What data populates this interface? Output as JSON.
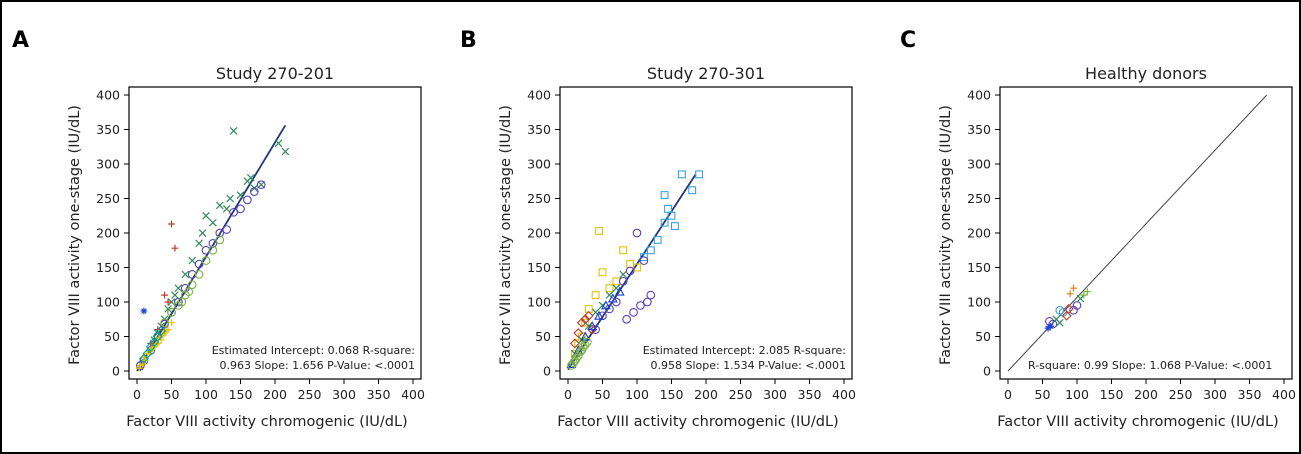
{
  "panels": [
    "A",
    "B",
    "C"
  ],
  "chart_data": [
    {
      "type": "scatter",
      "title": "Study 270-201",
      "xlabel": "Factor VIII activity chromogenic (IU/dL)",
      "ylabel": "Factor VIII activity one-stage (IU/dL)",
      "xlim": [
        0,
        400
      ],
      "ylim": [
        0,
        400
      ],
      "xticks": [
        "0",
        "50",
        "100",
        "150",
        "200",
        "250",
        "300",
        "350",
        "400"
      ],
      "yticks": [
        "0",
        "50",
        "100",
        "150",
        "200",
        "250",
        "300",
        "350",
        "400"
      ],
      "annotation": [
        "Estimated Intercept: 0.068 R-square:",
        "0.963 Slope: 1.656 P-Value: <.0001"
      ],
      "fit_line": {
        "x": [
          0,
          215
        ],
        "y": [
          0,
          356
        ],
        "color": "#1f3a7a"
      },
      "series": [
        {
          "marker": "x",
          "color": "#2e8b57",
          "points": [
            [
              140,
              348
            ],
            [
              215,
              318
            ],
            [
              205,
              330
            ],
            [
              160,
              275
            ],
            [
              150,
              255
            ],
            [
              170,
              265
            ],
            [
              135,
              250
            ],
            [
              120,
              240
            ],
            [
              100,
              225
            ],
            [
              165,
              280
            ],
            [
              180,
              270
            ],
            [
              110,
              215
            ],
            [
              95,
              200
            ],
            [
              130,
              235
            ],
            [
              90,
              185
            ],
            [
              80,
              160
            ],
            [
              70,
              140
            ],
            [
              60,
              120
            ],
            [
              50,
              100
            ],
            [
              45,
              90
            ],
            [
              55,
              110
            ],
            [
              40,
              75
            ],
            [
              35,
              65
            ],
            [
              30,
              55
            ],
            [
              25,
              45
            ]
          ]
        },
        {
          "marker": "o",
          "color": "#5b3fbf",
          "points": [
            [
              180,
              270
            ],
            [
              160,
              248
            ],
            [
              140,
              230
            ],
            [
              120,
              200
            ],
            [
              100,
              175
            ],
            [
              90,
              155
            ],
            [
              80,
              140
            ],
            [
              110,
              185
            ],
            [
              130,
              205
            ],
            [
              70,
              120
            ],
            [
              60,
              100
            ],
            [
              50,
              85
            ],
            [
              40,
              68
            ],
            [
              30,
              50
            ],
            [
              20,
              30
            ],
            [
              10,
              15
            ],
            [
              5,
              8
            ],
            [
              150,
              235
            ],
            [
              170,
              260
            ]
          ]
        },
        {
          "marker": "+",
          "color": "#c0392b",
          "points": [
            [
              50,
              213
            ],
            [
              55,
              178
            ],
            [
              40,
              110
            ],
            [
              45,
              100
            ],
            [
              30,
              60
            ],
            [
              20,
              40
            ]
          ]
        },
        {
          "marker": "*",
          "color": "#1a3fcf",
          "points": [
            [
              10,
              87
            ],
            [
              8,
              12
            ],
            [
              5,
              5
            ]
          ]
        },
        {
          "marker": "+",
          "color": "#e6c200",
          "points": [
            [
              15,
              25
            ],
            [
              20,
              30
            ],
            [
              25,
              35
            ],
            [
              30,
              40
            ],
            [
              35,
              45
            ],
            [
              40,
              55
            ],
            [
              10,
              20
            ],
            [
              12,
              15
            ],
            [
              18,
              28
            ],
            [
              22,
              32
            ],
            [
              28,
              38
            ],
            [
              32,
              48
            ],
            [
              45,
              60
            ],
            [
              50,
              70
            ],
            [
              8,
              10
            ],
            [
              5,
              8
            ],
            [
              3,
              4
            ],
            [
              38,
              52
            ],
            [
              42,
              58
            ]
          ]
        },
        {
          "marker": "o",
          "color": "#7cb342",
          "points": [
            [
              40,
              70
            ],
            [
              50,
              85
            ],
            [
              60,
              95
            ],
            [
              70,
              110
            ],
            [
              80,
              125
            ],
            [
              90,
              140
            ],
            [
              100,
              160
            ],
            [
              110,
              175
            ],
            [
              120,
              190
            ],
            [
              65,
              100
            ],
            [
              75,
              115
            ]
          ]
        },
        {
          "marker": "d",
          "color": "#00a0a0",
          "points": [
            [
              20,
              35
            ],
            [
              25,
              42
            ],
            [
              30,
              50
            ],
            [
              35,
              58
            ],
            [
              15,
              25
            ],
            [
              10,
              18
            ]
          ]
        }
      ]
    },
    {
      "type": "scatter",
      "title": "Study 270-301",
      "xlabel": "Factor VIII activity chromogenic (IU/dL)",
      "ylabel": "Factor VIII activity one-stage (IU/dL)",
      "xlim": [
        0,
        400
      ],
      "ylim": [
        0,
        400
      ],
      "xticks": [
        "0",
        "50",
        "100",
        "150",
        "200",
        "250",
        "300",
        "350",
        "400"
      ],
      "yticks": [
        "0",
        "50",
        "100",
        "150",
        "200",
        "250",
        "300",
        "350",
        "400"
      ],
      "annotation": [
        "Estimated Intercept: 2.085 R-square:",
        "0.958 Slope: 1.534 P-Value: <.0001"
      ],
      "fit_line": {
        "x": [
          0,
          185
        ],
        "y": [
          2,
          285
        ],
        "color": "#1f3a7a"
      },
      "series": [
        {
          "marker": "s",
          "color": "#3aa0e0",
          "points": [
            [
              165,
              285
            ],
            [
              190,
              285
            ],
            [
              140,
              255
            ],
            [
              180,
              262
            ],
            [
              145,
              235
            ],
            [
              150,
              225
            ],
            [
              140,
              215
            ],
            [
              155,
              210
            ],
            [
              130,
              190
            ],
            [
              120,
              175
            ],
            [
              110,
              165
            ]
          ]
        },
        {
          "marker": "s",
          "color": "#e6c200",
          "points": [
            [
              45,
              203
            ],
            [
              80,
              175
            ],
            [
              50,
              143
            ],
            [
              90,
              155
            ],
            [
              100,
              150
            ],
            [
              70,
              130
            ],
            [
              60,
              120
            ],
            [
              40,
              110
            ],
            [
              30,
              90
            ],
            [
              25,
              70
            ],
            [
              20,
              50
            ],
            [
              15,
              40
            ],
            [
              10,
              25
            ]
          ]
        },
        {
          "marker": "o",
          "color": "#5b3fbf",
          "points": [
            [
              100,
              200
            ],
            [
              110,
              160
            ],
            [
              90,
              145
            ],
            [
              80,
              130
            ],
            [
              120,
              110
            ],
            [
              105,
              95
            ],
            [
              115,
              100
            ],
            [
              85,
              75
            ],
            [
              95,
              85
            ],
            [
              70,
              100
            ],
            [
              60,
              90
            ],
            [
              50,
              80
            ],
            [
              40,
              60
            ]
          ]
        },
        {
          "marker": "d",
          "color": "#c0392b",
          "points": [
            [
              20,
              70
            ],
            [
              25,
              75
            ],
            [
              15,
              55
            ],
            [
              10,
              40
            ],
            [
              30,
              80
            ],
            [
              35,
              60
            ]
          ]
        },
        {
          "marker": "x",
          "color": "#2e8b57",
          "points": [
            [
              60,
              110
            ],
            [
              70,
              120
            ],
            [
              80,
              140
            ],
            [
              50,
              95
            ],
            [
              40,
              85
            ],
            [
              30,
              65
            ],
            [
              20,
              45
            ],
            [
              10,
              25
            ]
          ]
        },
        {
          "marker": "^",
          "color": "#1a3fcf",
          "points": [
            [
              65,
              105
            ],
            [
              75,
              115
            ],
            [
              55,
              95
            ],
            [
              45,
              80
            ],
            [
              35,
              65
            ],
            [
              25,
              50
            ],
            [
              15,
              30
            ],
            [
              5,
              10
            ]
          ]
        },
        {
          "marker": "o",
          "color": "#7cb342",
          "points": [
            [
              10,
              15
            ],
            [
              15,
              22
            ],
            [
              20,
              30
            ],
            [
              25,
              38
            ],
            [
              5,
              8
            ],
            [
              8,
              12
            ],
            [
              12,
              18
            ],
            [
              18,
              28
            ],
            [
              22,
              35
            ],
            [
              28,
              42
            ]
          ]
        }
      ]
    },
    {
      "type": "scatter",
      "title": "Healthy donors",
      "xlabel": "Factor VIII activity chromogenic (IU/dL)",
      "ylabel": "Factor VIII activity one-stage (IU/dL)",
      "xlim": [
        0,
        400
      ],
      "ylim": [
        0,
        400
      ],
      "xticks": [
        "0",
        "50",
        "100",
        "150",
        "200",
        "250",
        "300",
        "350",
        "400"
      ],
      "yticks": [
        "0",
        "50",
        "100",
        "150",
        "200",
        "250",
        "300",
        "350",
        "400"
      ],
      "annotation": [
        "R-square: 0.99 Slope: 1.068 P-Value: <.0001"
      ],
      "fit_line": {
        "x": [
          0,
          375
        ],
        "y": [
          0,
          400
        ],
        "color": "#444444"
      },
      "series": [
        {
          "marker": "o",
          "color": "#5b3fbf",
          "points": [
            [
              60,
              72
            ],
            [
              65,
              68
            ],
            [
              95,
              88
            ],
            [
              100,
              95
            ]
          ]
        },
        {
          "marker": "x",
          "color": "#2e8b57",
          "points": [
            [
              70,
              75
            ],
            [
              75,
              70
            ],
            [
              105,
              105
            ]
          ]
        },
        {
          "marker": "+",
          "color": "#e67e22",
          "points": [
            [
              95,
              120
            ],
            [
              90,
              112
            ]
          ]
        },
        {
          "marker": "o",
          "color": "#3aa0e0",
          "points": [
            [
              75,
              88
            ],
            [
              80,
              85
            ]
          ]
        },
        {
          "marker": "*",
          "color": "#1a3fcf",
          "points": [
            [
              58,
              62
            ],
            [
              62,
              65
            ]
          ]
        },
        {
          "marker": "d",
          "color": "#c0392b",
          "points": [
            [
              85,
              80
            ],
            [
              88,
              90
            ]
          ]
        },
        {
          "marker": "+",
          "color": "#7cb342",
          "points": [
            [
              110,
              110
            ],
            [
              115,
              115
            ]
          ]
        }
      ]
    }
  ]
}
